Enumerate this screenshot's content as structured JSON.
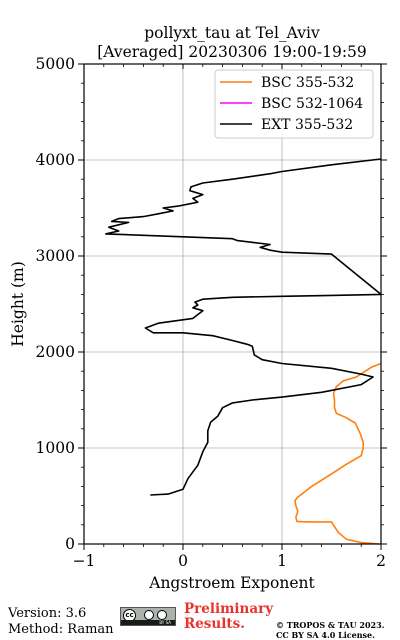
{
  "chart_data": {
    "type": "line",
    "title_line1": "pollyxt_tau at Tel_Aviv",
    "title_line2": "[Averaged] 20230306 19:00-19:59",
    "xlabel": "Angstroem Exponent",
    "ylabel": "Height (m)",
    "xlim": [
      -1,
      2
    ],
    "ylim": [
      0,
      5000
    ],
    "x_ticks": [
      -1,
      0,
      1,
      2
    ],
    "x_tick_labels": [
      "−1",
      "0",
      "1",
      "2"
    ],
    "y_ticks": [
      0,
      1000,
      2000,
      3000,
      4000,
      5000
    ],
    "y_tick_labels": [
      "0",
      "1000",
      "2000",
      "3000",
      "4000",
      "5000"
    ],
    "grid": true,
    "legend_position": "top-right",
    "series": [
      {
        "name": "BSC 355-532",
        "color": "#ff7f0e",
        "points": [
          [
            1.98,
            0
          ],
          [
            1.8,
            15
          ],
          [
            1.65,
            50
          ],
          [
            1.57,
            120
          ],
          [
            1.53,
            180
          ],
          [
            1.5,
            230
          ],
          [
            1.25,
            230
          ],
          [
            1.15,
            235
          ],
          [
            1.14,
            280
          ],
          [
            1.16,
            340
          ],
          [
            1.14,
            400
          ],
          [
            1.13,
            450
          ],
          [
            1.15,
            480
          ],
          [
            1.3,
            600
          ],
          [
            1.5,
            730
          ],
          [
            1.65,
            830
          ],
          [
            1.8,
            920
          ],
          [
            1.82,
            1000
          ],
          [
            1.82,
            1060
          ],
          [
            1.79,
            1150
          ],
          [
            1.74,
            1260
          ],
          [
            1.64,
            1320
          ],
          [
            1.55,
            1360
          ],
          [
            1.53,
            1420
          ],
          [
            1.53,
            1500
          ],
          [
            1.52,
            1570
          ],
          [
            1.55,
            1640
          ],
          [
            1.62,
            1700
          ],
          [
            1.75,
            1740
          ],
          [
            1.9,
            1840
          ],
          [
            2.0,
            1880
          ]
        ]
      },
      {
        "name": "BSC 532-1064",
        "color": "#ff00ff",
        "points": []
      },
      {
        "name": "EXT 355-532",
        "color": "#000000",
        "points": [
          [
            -0.33,
            510
          ],
          [
            -0.15,
            520
          ],
          [
            0.0,
            570
          ],
          [
            0.05,
            680
          ],
          [
            0.15,
            820
          ],
          [
            0.2,
            960
          ],
          [
            0.25,
            1060
          ],
          [
            0.25,
            1180
          ],
          [
            0.28,
            1270
          ],
          [
            0.35,
            1330
          ],
          [
            0.4,
            1420
          ],
          [
            0.5,
            1470
          ],
          [
            0.7,
            1500
          ],
          [
            1.0,
            1530
          ],
          [
            1.4,
            1580
          ],
          [
            1.8,
            1660
          ],
          [
            1.92,
            1740
          ],
          [
            1.8,
            1770
          ],
          [
            1.5,
            1830
          ],
          [
            1.0,
            1880
          ],
          [
            0.8,
            1920
          ],
          [
            0.72,
            1970
          ],
          [
            0.7,
            2060
          ],
          [
            0.65,
            2080
          ],
          [
            0.5,
            2120
          ],
          [
            0.3,
            2170
          ],
          [
            0.0,
            2200
          ],
          [
            -0.3,
            2200
          ],
          [
            -0.38,
            2250
          ],
          [
            -0.25,
            2300
          ],
          [
            0.1,
            2350
          ],
          [
            0.2,
            2430
          ],
          [
            0.1,
            2460
          ],
          [
            0.15,
            2490
          ],
          [
            0.12,
            2520
          ],
          [
            0.2,
            2550
          ],
          [
            0.5,
            2570
          ],
          [
            1.0,
            2580
          ],
          [
            1.5,
            2590
          ],
          [
            2.0,
            2600
          ],
          [
            1.5,
            3020
          ],
          [
            1.0,
            3040
          ],
          [
            0.88,
            3060
          ],
          [
            0.78,
            3090
          ],
          [
            0.88,
            3120
          ],
          [
            0.55,
            3160
          ],
          [
            0.5,
            3180
          ],
          [
            0.0,
            3200
          ],
          [
            -0.5,
            3220
          ],
          [
            -0.78,
            3230
          ],
          [
            -0.65,
            3260
          ],
          [
            -0.75,
            3300
          ],
          [
            -0.55,
            3350
          ],
          [
            -0.72,
            3360
          ],
          [
            -0.65,
            3390
          ],
          [
            -0.4,
            3410
          ],
          [
            -0.25,
            3440
          ],
          [
            -0.1,
            3470
          ],
          [
            -0.2,
            3500
          ],
          [
            -0.05,
            3520
          ],
          [
            0.15,
            3560
          ],
          [
            0.1,
            3600
          ],
          [
            0.2,
            3640
          ],
          [
            0.07,
            3680
          ],
          [
            0.08,
            3720
          ],
          [
            0.2,
            3760
          ],
          [
            0.5,
            3800
          ],
          [
            0.9,
            3860
          ],
          [
            1.0,
            3880
          ],
          [
            1.5,
            3950
          ],
          [
            2.0,
            4010
          ]
        ]
      }
    ]
  },
  "footer": {
    "version": "Version: 3.6",
    "method": "Method: Raman",
    "preliminary_line1": "Preliminary",
    "preliminary_line2": "Results.",
    "copyright_line1": "© TROPOS & TAU 2023.",
    "copyright_line2": "CC BY SA 4.0 License.",
    "license_badge_text": "cc",
    "license_badge_small": "BY   SA"
  }
}
